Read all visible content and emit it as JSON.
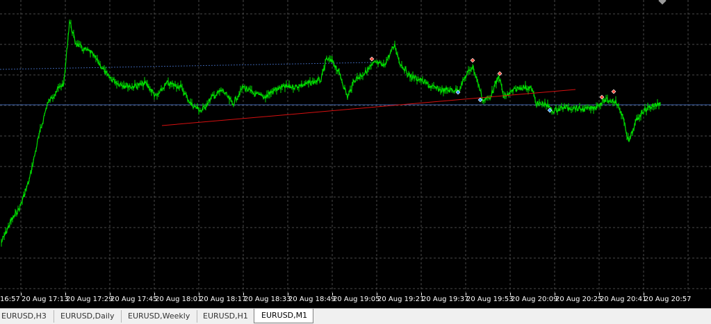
{
  "chart": {
    "symbol": "EURUSD",
    "timeframe": "M1",
    "colors": {
      "background": "#000000",
      "grid": "#4a4a4a",
      "price": "#00e000",
      "trendline": "#d81010",
      "hline_horizontal": "#3a5fa8",
      "sell_marker": "#ff5040",
      "buy_marker": "#3aa0ff"
    },
    "time_labels": [
      "16:57",
      "20 Aug 17:13",
      "20 Aug 17:29",
      "20 Aug 17:45",
      "20 Aug 18:01",
      "20 Aug 18:17",
      "20 Aug 18:33",
      "20 Aug 18:49",
      "20 Aug 19:05",
      "20 Aug 19:21",
      "20 Aug 19:37",
      "20 Aug 19:53",
      "20 Aug 20:09",
      "20 Aug 20:25",
      "20 Aug 20:41",
      "20 Aug 20:57"
    ]
  },
  "tabs": [
    {
      "label": "EURUSD,H3",
      "active": false
    },
    {
      "label": "EURUSD,Daily",
      "active": false
    },
    {
      "label": "EURUSD,Weekly",
      "active": false
    },
    {
      "label": "EURUSD,H1",
      "active": false
    },
    {
      "label": "EURUSD,M1",
      "active": true
    }
  ]
}
